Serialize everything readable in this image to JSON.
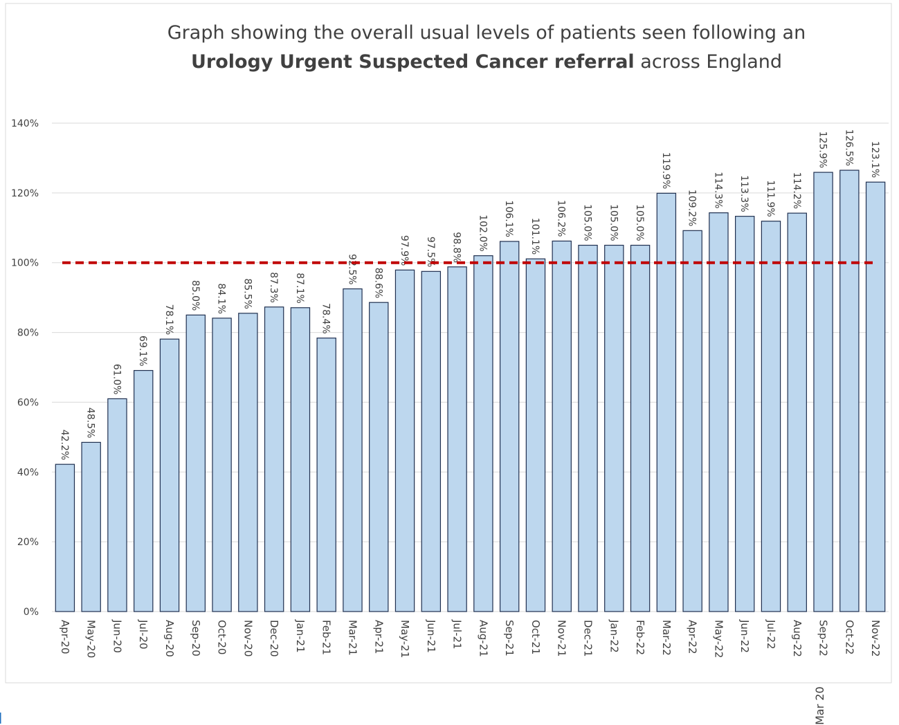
{
  "chart_data": {
    "type": "bar",
    "title": [
      "Graph showing the overall usual levels of patients seen following an",
      "Urology Urgent Suspected Cancer referral",
      "across England"
    ],
    "categories": [
      "Apr-20",
      "May-20",
      "Jun-20",
      "Jul-20",
      "Aug-20",
      "Sep-20",
      "Oct-20",
      "Nov-20",
      "Dec-20",
      "Jan-21",
      "Feb-21",
      "Mar-21",
      "Apr-21",
      "May-21",
      "Jun-21",
      "Jul-21",
      "Aug-21",
      "Sep-21",
      "Oct-21",
      "Nov-21",
      "Dec-21",
      "Jan-22",
      "Feb-22",
      "Mar-22",
      "Apr-22",
      "May-22",
      "Jun-22",
      "Jul-22",
      "Aug-22",
      "Sep-22",
      "Oct-22",
      "Nov-22"
    ],
    "values": [
      42.2,
      48.5,
      61.0,
      69.1,
      78.1,
      85.0,
      84.1,
      85.5,
      87.3,
      87.1,
      78.4,
      92.5,
      88.6,
      97.9,
      97.5,
      98.8,
      102.0,
      106.1,
      101.1,
      106.2,
      105.0,
      105.0,
      105.0,
      119.9,
      109.2,
      114.3,
      113.3,
      111.9,
      114.2,
      125.9,
      126.5,
      123.1
    ],
    "value_labels": [
      "42.2%",
      "48.5%",
      "61.0%",
      "69.1%",
      "78.1%",
      "85.0%",
      "84.1%",
      "85.5%",
      "87.3%",
      "87.1%",
      "78.4%",
      "92.5%",
      "88.6%",
      "97.9%",
      "97.5%",
      "98.8%",
      "102.0%",
      "106.1%",
      "101.1%",
      "106.2%",
      "105.0%",
      "105.0%",
      "105.0%",
      "119.9%",
      "109.2%",
      "114.3%",
      "113.3%",
      "111.9%",
      "114.2%",
      "125.9%",
      "126.5%",
      "123.1%"
    ],
    "color": "#bdd7ee",
    "ylim": [
      0,
      140
    ],
    "yticks": [
      {
        "value": 0,
        "label": "0%"
      },
      {
        "value": 20,
        "label": "20%"
      },
      {
        "value": 40,
        "label": "40%"
      },
      {
        "value": 60,
        "label": "60%"
      },
      {
        "value": 80,
        "label": "80%"
      },
      {
        "value": 100,
        "label": "100%"
      },
      {
        "value": 120,
        "label": "120%"
      },
      {
        "value": 140,
        "label": "140%"
      }
    ],
    "grid": true,
    "reference_line": {
      "value": 100,
      "color": "#c00000"
    },
    "footer_label": "Mar 20"
  }
}
